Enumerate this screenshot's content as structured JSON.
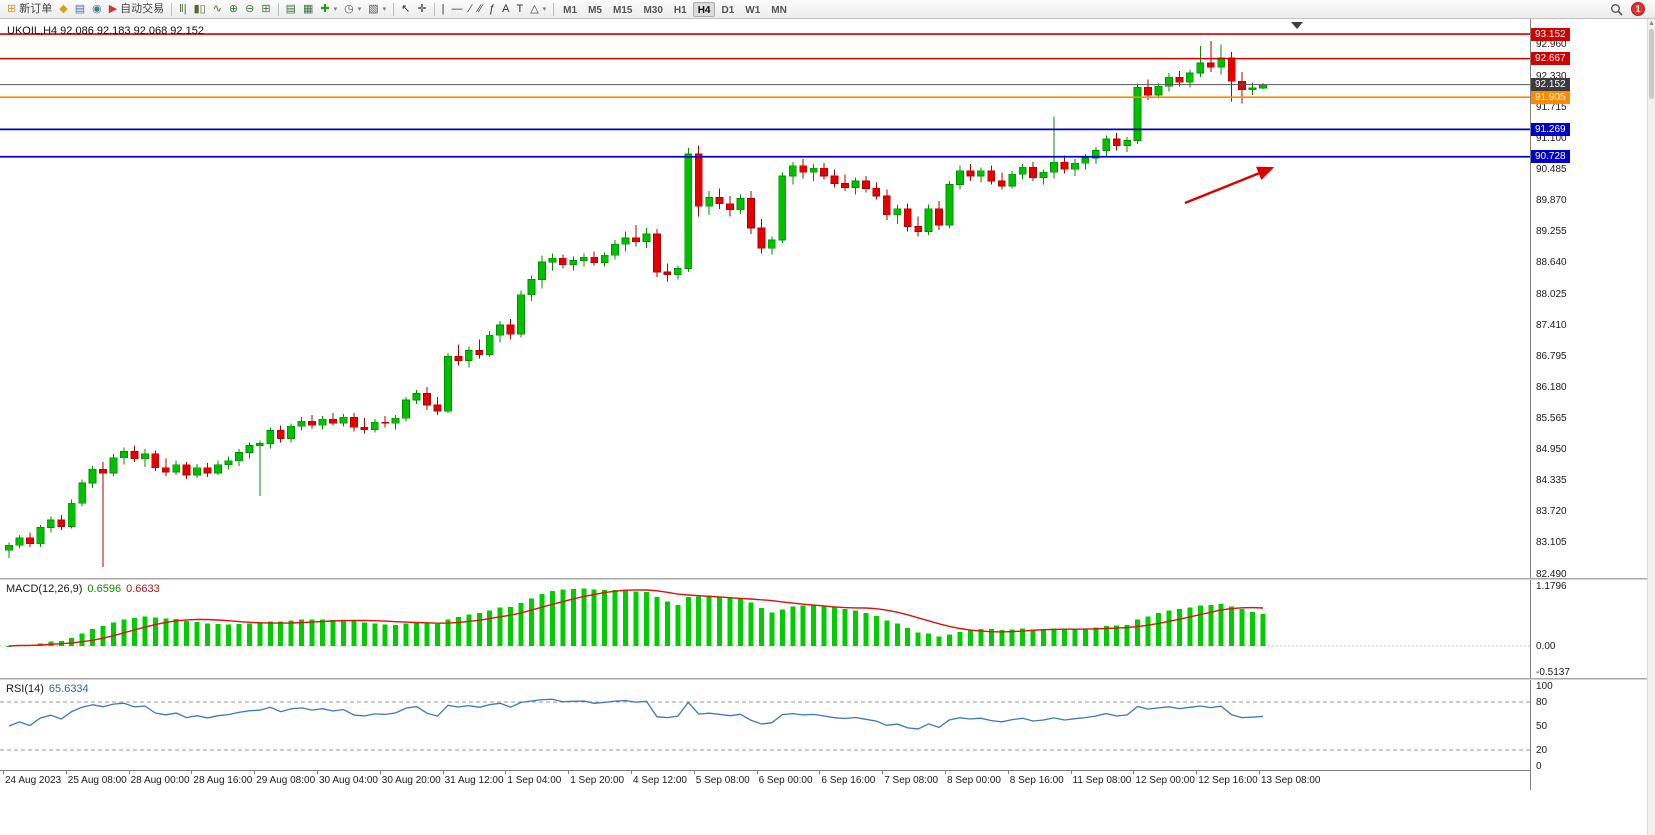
{
  "toolbar": {
    "items": [
      {
        "kind": "button",
        "name": "new-order-button",
        "glyph": "⊞",
        "glyph_color": "#caa227",
        "label": "新订单"
      },
      {
        "kind": "icon",
        "name": "profiles-icon",
        "glyph": "◆",
        "color": "#d4a017"
      },
      {
        "kind": "icon",
        "name": "market-watch-icon",
        "glyph": "▤",
        "color": "#4a6fb3"
      },
      {
        "kind": "icon",
        "name": "data-window-icon",
        "glyph": "◉",
        "color": "#3f7f7f"
      },
      {
        "kind": "button",
        "name": "autotrading-button",
        "glyph": "▶",
        "glyph_color": "#c43b3b",
        "label": "自动交易"
      },
      {
        "kind": "sep"
      },
      {
        "kind": "icon",
        "name": "bar-chart-icon",
        "glyph": "‖|",
        "color": "#50682a"
      },
      {
        "kind": "icon",
        "name": "candlestick-chart-icon",
        "glyph": "▮▯",
        "color": "#50682a"
      },
      {
        "kind": "icon",
        "name": "line-chart-icon",
        "glyph": "∿",
        "color": "#50682a"
      },
      {
        "kind": "icon",
        "name": "zoom-in-icon",
        "glyph": "⊕",
        "color": "#2f7f2f"
      },
      {
        "kind": "icon",
        "name": "zoom-out-icon",
        "glyph": "⊖",
        "color": "#2f7f2f"
      },
      {
        "kind": "icon",
        "name": "tile-windows-icon",
        "glyph": "⊞",
        "color": "#3f6f3f"
      },
      {
        "kind": "sep"
      },
      {
        "kind": "icon",
        "name": "chart-list-icon",
        "glyph": "▤",
        "color": "#3f6f3f"
      },
      {
        "kind": "icon",
        "name": "chart-cascade-icon",
        "glyph": "▦",
        "color": "#3f6f3f"
      },
      {
        "kind": "icon",
        "name": "add-indicator-button",
        "glyph": "✚",
        "color": "#1e9e1e",
        "dropdown": true
      },
      {
        "kind": "icon",
        "name": "timeframes-menu-button",
        "glyph": "◷",
        "color": "#555555",
        "dropdown": true
      },
      {
        "kind": "icon",
        "name": "template-menu-button",
        "glyph": "▧",
        "color": "#555555",
        "dropdown": true
      },
      {
        "kind": "sep"
      },
      {
        "kind": "icon",
        "name": "cursor-icon",
        "glyph": "↖",
        "color": "#333333"
      },
      {
        "kind": "icon",
        "name": "crosshair-icon",
        "glyph": "✛",
        "color": "#333333"
      },
      {
        "kind": "sep"
      },
      {
        "kind": "icon",
        "name": "vertical-line-icon",
        "glyph": "|",
        "color": "#333333"
      },
      {
        "kind": "icon",
        "name": "horizontal-line-icon",
        "glyph": "—",
        "color": "#333333"
      },
      {
        "kind": "icon",
        "name": "trendline-icon",
        "glyph": "∕",
        "color": "#333333"
      },
      {
        "kind": "icon",
        "name": "channel-icon",
        "glyph": "∕∕",
        "color": "#333333"
      },
      {
        "kind": "icon",
        "name": "fibonacci-icon",
        "glyph": "ƒ",
        "color": "#333333"
      },
      {
        "kind": "icon",
        "name": "text-icon",
        "glyph": "A",
        "color": "#333333"
      },
      {
        "kind": "icon",
        "name": "text-label-icon",
        "glyph": "T",
        "color": "#333333"
      },
      {
        "kind": "icon",
        "name": "shapes-menu-button",
        "glyph": "△",
        "color": "#333333",
        "dropdown": true
      },
      {
        "kind": "sep"
      },
      {
        "kind": "tf",
        "name": "timeframe-m1",
        "label": "M1"
      },
      {
        "kind": "tf",
        "name": "timeframe-m5",
        "label": "M5"
      },
      {
        "kind": "tf",
        "name": "timeframe-m15",
        "label": "M15"
      },
      {
        "kind": "tf",
        "name": "timeframe-m30",
        "label": "M30"
      },
      {
        "kind": "tf",
        "name": "timeframe-h1",
        "label": "H1"
      },
      {
        "kind": "tf",
        "name": "timeframe-h4",
        "label": "H4",
        "active": true
      },
      {
        "kind": "tf",
        "name": "timeframe-d1",
        "label": "D1"
      },
      {
        "kind": "tf",
        "name": "timeframe-w1",
        "label": "W1"
      },
      {
        "kind": "tf",
        "name": "timeframe-mn",
        "label": "MN"
      },
      {
        "kind": "spacer"
      },
      {
        "kind": "magnifier",
        "name": "search-icon"
      },
      {
        "kind": "badge",
        "name": "notification-badge",
        "label": "1"
      }
    ]
  },
  "chart": {
    "ohlc_label": "UKOIL,H4  92.086 92.183 92.068 92.152",
    "macd": {
      "label": "MACD(12,26,9)",
      "value_main": "0.6596",
      "value_signal": "0.6633"
    },
    "rsi": {
      "label": "RSI(14)",
      "value": "65.6334"
    }
  },
  "price_axis": {
    "ticks": [
      "92.960",
      "92.330",
      "91.715",
      "91.100",
      "90.485",
      "89.870",
      "89.255",
      "88.640",
      "88.025",
      "87.410",
      "86.795",
      "86.180",
      "85.565",
      "84.950",
      "84.335",
      "83.720",
      "83.105",
      "82.490"
    ],
    "badges": [
      {
        "label": "93.152",
        "price": 93.152,
        "bg": "#d40000"
      },
      {
        "label": "92.667",
        "price": 92.667,
        "bg": "#d40000"
      },
      {
        "label": "92.152",
        "price": 92.152,
        "bg": "#3c3c3c"
      },
      {
        "label": "91.905",
        "price": 91.905,
        "bg": "#ff8a00"
      },
      {
        "label": "91.269",
        "price": 91.269,
        "bg": "#0000cd"
      },
      {
        "label": "90.728",
        "price": 90.728,
        "bg": "#0000cd"
      }
    ],
    "macd_labels": [
      "1.1796",
      "0.00",
      "-0.5137"
    ],
    "rsi_labels": [
      "100",
      "80",
      "50",
      "20",
      "0"
    ]
  },
  "chart_data": {
    "type": "candlestick",
    "symbol": "UKOIL",
    "timeframe": "H4",
    "y_range": [
      82.4,
      93.45
    ],
    "colors": {
      "up": "#00c000",
      "up_stroke": "#008f00",
      "down": "#e60000",
      "down_stroke": "#b00000",
      "macd_hist": "#00cc00",
      "macd_signal": "#dd1111",
      "rsi_line": "#3b77c2",
      "bid_line": "#555555",
      "arrow": "#dd0000"
    },
    "levels": [
      {
        "price": 93.152,
        "color": "#d40000",
        "width": 1.6,
        "kind": "resistance"
      },
      {
        "price": 92.667,
        "color": "#d40000",
        "width": 1.6,
        "kind": "resistance"
      },
      {
        "price": 92.152,
        "color": "#555555",
        "width": 1.0,
        "kind": "bid"
      },
      {
        "price": 91.905,
        "color": "#ff8a00",
        "width": 1.6,
        "kind": "level"
      },
      {
        "price": 91.269,
        "color": "#0000cd",
        "width": 1.8,
        "kind": "support"
      },
      {
        "price": 90.728,
        "color": "#0000cd",
        "width": 1.8,
        "kind": "support"
      }
    ],
    "annotation_arrow": {
      "from": [
        1185,
        184
      ],
      "to": [
        1272,
        149
      ],
      "color": "#dd0000"
    },
    "shift_marker_x": 1297,
    "macd": {
      "params": [
        12,
        26,
        9
      ],
      "axis_max": 1.1796,
      "axis_min": -0.5137
    },
    "rsi": {
      "period": 14,
      "levels": [
        80,
        20
      ],
      "axis": [
        0,
        100
      ]
    },
    "time_labels": [
      "24 Aug 2023",
      "25 Aug 08:00",
      "28 Aug 00:00",
      "28 Aug 16:00",
      "29 Aug 08:00",
      "30 Aug 04:00",
      "30 Aug 20:00",
      "31 Aug 12:00",
      "1 Sep 04:00",
      "1 Sep 20:00",
      "4 Sep 12:00",
      "5 Sep 08:00",
      "6 Sep 00:00",
      "6 Sep 16:00",
      "7 Sep 08:00",
      "8 Sep 00:00",
      "8 Sep 16:00",
      "11 Sep 08:00",
      "12 Sep 00:00",
      "12 Sep 16:00",
      "13 Sep 08:00"
    ],
    "candles": [
      [
        82.95,
        83.1,
        82.8,
        83.05
      ],
      [
        83.05,
        83.25,
        83.0,
        83.2
      ],
      [
        83.2,
        83.3,
        83.02,
        83.08
      ],
      [
        83.08,
        83.45,
        83.02,
        83.4
      ],
      [
        83.4,
        83.62,
        83.3,
        83.55
      ],
      [
        83.55,
        83.65,
        83.35,
        83.42
      ],
      [
        83.42,
        83.95,
        83.38,
        83.88
      ],
      [
        83.88,
        84.35,
        83.82,
        84.28
      ],
      [
        84.28,
        84.62,
        84.18,
        84.55
      ],
      [
        84.55,
        84.7,
        82.62,
        84.48
      ],
      [
        84.48,
        84.85,
        84.42,
        84.78
      ],
      [
        84.78,
        84.98,
        84.65,
        84.9
      ],
      [
        84.9,
        85.02,
        84.7,
        84.76
      ],
      [
        84.76,
        84.95,
        84.6,
        84.86
      ],
      [
        84.86,
        84.92,
        84.52,
        84.58
      ],
      [
        84.58,
        84.76,
        84.42,
        84.5
      ],
      [
        84.5,
        84.72,
        84.44,
        84.64
      ],
      [
        84.64,
        84.7,
        84.36,
        84.44
      ],
      [
        84.44,
        84.66,
        84.38,
        84.58
      ],
      [
        84.58,
        84.68,
        84.4,
        84.48
      ],
      [
        84.48,
        84.72,
        84.44,
        84.64
      ],
      [
        84.64,
        84.8,
        84.55,
        84.72
      ],
      [
        84.72,
        84.95,
        84.62,
        84.88
      ],
      [
        84.88,
        85.08,
        84.76,
        85.02
      ],
      [
        85.02,
        85.12,
        84.02,
        85.06
      ],
      [
        85.06,
        85.38,
        84.96,
        85.32
      ],
      [
        85.32,
        85.42,
        85.08,
        85.16
      ],
      [
        85.16,
        85.46,
        85.08,
        85.4
      ],
      [
        85.4,
        85.58,
        85.32,
        85.5
      ],
      [
        85.5,
        85.62,
        85.36,
        85.42
      ],
      [
        85.42,
        85.6,
        85.34,
        85.54
      ],
      [
        85.54,
        85.66,
        85.42,
        85.46
      ],
      [
        85.46,
        85.64,
        85.4,
        85.58
      ],
      [
        85.58,
        85.66,
        85.3,
        85.38
      ],
      [
        85.38,
        85.56,
        85.26,
        85.34
      ],
      [
        85.34,
        85.54,
        85.28,
        85.48
      ],
      [
        85.48,
        85.6,
        85.38,
        85.46
      ],
      [
        85.46,
        85.62,
        85.34,
        85.56
      ],
      [
        85.56,
        85.98,
        85.5,
        85.92
      ],
      [
        85.92,
        86.12,
        85.84,
        86.05
      ],
      [
        86.05,
        86.18,
        85.72,
        85.82
      ],
      [
        85.82,
        85.98,
        85.62,
        85.7
      ],
      [
        85.7,
        86.85,
        85.66,
        86.78
      ],
      [
        86.78,
        87.02,
        86.6,
        86.7
      ],
      [
        86.7,
        86.98,
        86.56,
        86.9
      ],
      [
        86.9,
        87.12,
        86.74,
        86.82
      ],
      [
        86.82,
        87.28,
        86.78,
        87.2
      ],
      [
        87.2,
        87.48,
        87.06,
        87.4
      ],
      [
        87.4,
        87.52,
        87.12,
        87.22
      ],
      [
        87.22,
        88.08,
        87.16,
        88.0
      ],
      [
        88.0,
        88.38,
        87.88,
        88.3
      ],
      [
        88.3,
        88.78,
        88.12,
        88.65
      ],
      [
        88.65,
        88.82,
        88.48,
        88.72
      ],
      [
        88.72,
        88.8,
        88.52,
        88.6
      ],
      [
        88.6,
        88.76,
        88.48,
        88.68
      ],
      [
        88.68,
        88.82,
        88.56,
        88.74
      ],
      [
        88.74,
        88.86,
        88.58,
        88.64
      ],
      [
        88.64,
        88.84,
        88.56,
        88.78
      ],
      [
        88.78,
        89.08,
        88.7,
        89.0
      ],
      [
        89.0,
        89.25,
        88.86,
        89.12
      ],
      [
        89.12,
        89.38,
        88.95,
        89.05
      ],
      [
        89.05,
        89.32,
        88.92,
        89.2
      ],
      [
        89.2,
        89.3,
        88.35,
        88.45
      ],
      [
        88.45,
        88.62,
        88.26,
        88.4
      ],
      [
        88.4,
        88.58,
        88.3,
        88.52
      ],
      [
        88.52,
        90.9,
        88.45,
        90.78
      ],
      [
        90.78,
        90.95,
        89.55,
        89.75
      ],
      [
        89.75,
        90.05,
        89.58,
        89.92
      ],
      [
        89.92,
        90.1,
        89.7,
        89.8
      ],
      [
        89.8,
        89.95,
        89.55,
        89.68
      ],
      [
        89.68,
        89.98,
        89.6,
        89.9
      ],
      [
        89.9,
        90.05,
        89.2,
        89.32
      ],
      [
        89.32,
        89.5,
        88.82,
        88.92
      ],
      [
        88.92,
        89.15,
        88.8,
        89.08
      ],
      [
        89.08,
        90.42,
        89.02,
        90.35
      ],
      [
        90.35,
        90.62,
        90.18,
        90.55
      ],
      [
        90.55,
        90.68,
        90.3,
        90.42
      ],
      [
        90.42,
        90.58,
        90.25,
        90.5
      ],
      [
        90.5,
        90.6,
        90.28,
        90.35
      ],
      [
        90.35,
        90.48,
        90.12,
        90.2
      ],
      [
        90.2,
        90.38,
        90.05,
        90.12
      ],
      [
        90.12,
        90.32,
        89.98,
        90.25
      ],
      [
        90.25,
        90.35,
        90.02,
        90.1
      ],
      [
        90.1,
        90.22,
        89.88,
        89.95
      ],
      [
        89.95,
        90.08,
        89.48,
        89.58
      ],
      [
        89.58,
        89.78,
        89.4,
        89.7
      ],
      [
        89.7,
        89.8,
        89.25,
        89.35
      ],
      [
        89.35,
        89.55,
        89.15,
        89.25
      ],
      [
        89.25,
        89.78,
        89.18,
        89.7
      ],
      [
        89.7,
        89.85,
        89.28,
        89.38
      ],
      [
        89.38,
        90.25,
        89.32,
        90.18
      ],
      [
        90.18,
        90.55,
        90.08,
        90.45
      ],
      [
        90.45,
        90.58,
        90.25,
        90.35
      ],
      [
        90.35,
        90.52,
        90.22,
        90.45
      ],
      [
        90.45,
        90.55,
        90.18,
        90.25
      ],
      [
        90.25,
        90.42,
        90.08,
        90.15
      ],
      [
        90.15,
        90.45,
        90.1,
        90.38
      ],
      [
        90.38,
        90.58,
        90.28,
        90.52
      ],
      [
        90.52,
        90.62,
        90.25,
        90.32
      ],
      [
        90.32,
        90.48,
        90.18,
        90.42
      ],
      [
        90.42,
        91.52,
        90.3,
        90.62
      ],
      [
        90.62,
        90.75,
        90.4,
        90.48
      ],
      [
        90.48,
        90.68,
        90.35,
        90.6
      ],
      [
        90.6,
        90.78,
        90.48,
        90.7
      ],
      [
        90.7,
        90.92,
        90.58,
        90.85
      ],
      [
        90.85,
        91.15,
        90.72,
        91.08
      ],
      [
        91.08,
        91.2,
        90.85,
        90.95
      ],
      [
        90.95,
        91.12,
        90.82,
        91.05
      ],
      [
        91.05,
        92.18,
        90.98,
        92.1
      ],
      [
        92.1,
        92.25,
        91.85,
        91.95
      ],
      [
        91.95,
        92.18,
        91.88,
        92.12
      ],
      [
        92.12,
        92.38,
        92.02,
        92.3
      ],
      [
        92.3,
        92.42,
        92.12,
        92.2
      ],
      [
        92.2,
        92.45,
        92.1,
        92.38
      ],
      [
        92.38,
        92.92,
        92.3,
        92.58
      ],
      [
        92.58,
        93.02,
        92.4,
        92.5
      ],
      [
        92.5,
        92.95,
        92.35,
        92.68
      ],
      [
        92.68,
        92.8,
        91.82,
        92.22
      ],
      [
        92.22,
        92.4,
        91.78,
        92.05
      ],
      [
        92.05,
        92.2,
        91.95,
        92.086
      ],
      [
        92.086,
        92.183,
        92.068,
        92.152
      ]
    ]
  }
}
